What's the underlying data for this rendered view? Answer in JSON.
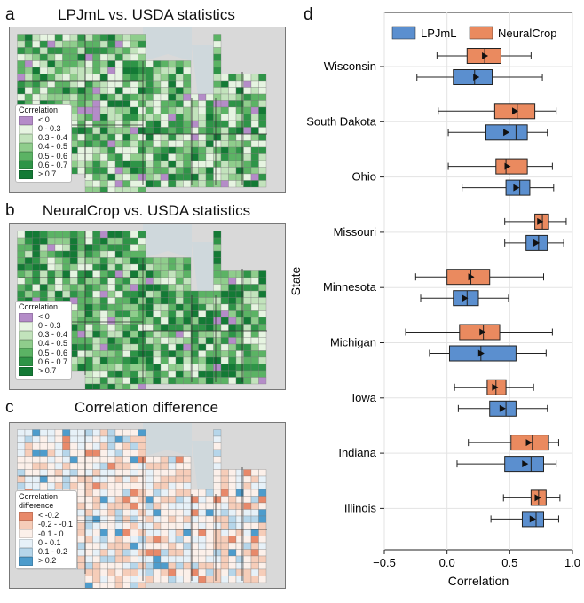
{
  "panels": {
    "a": {
      "letter": "a",
      "title": "LPJmL vs. USDA statistics"
    },
    "b": {
      "letter": "b",
      "title": "NeuralCrop vs. USDA statistics"
    },
    "c": {
      "letter": "c",
      "title": "Correlation difference"
    },
    "d": {
      "letter": "d"
    }
  },
  "legend_corr": {
    "title": "Correlation",
    "items": [
      {
        "label": "< 0",
        "color": "#b48cc8"
      },
      {
        "label": "0 - 0.3",
        "color": "#e6f4e1"
      },
      {
        "label": "0.3 - 0.4",
        "color": "#c2e3bc"
      },
      {
        "label": "0.4 - 0.5",
        "color": "#8fcd8c"
      },
      {
        "label": "0.5 - 0.6",
        "color": "#5bb364"
      },
      {
        "label": "0.6 - 0.7",
        "color": "#2e9447"
      },
      {
        "label": "> 0.7",
        "color": "#137a35"
      }
    ]
  },
  "legend_diff": {
    "title_line1": "Correlation",
    "title_line2": "difference",
    "items": [
      {
        "label": "< -0.2",
        "color": "#e8896a"
      },
      {
        "label": "-0.2 - -0.1",
        "color": "#f6cdb9"
      },
      {
        "label": "-0.1 - 0",
        "color": "#fcf0ea"
      },
      {
        "label": "0 - 0.1",
        "color": "#e7f1f8"
      },
      {
        "label": "0.1 - 0.2",
        "color": "#b6d6ea"
      },
      {
        "label": "> 0.2",
        "color": "#4d9ccc"
      }
    ]
  },
  "chart_data": {
    "type": "boxplot",
    "xlabel": "Correlation",
    "ylabel": "State",
    "xlim": [
      -0.5,
      1.0
    ],
    "xticks": [
      "−0.5",
      "0.0",
      "0.5",
      "1.0"
    ],
    "xtick_values": [
      -0.5,
      0.0,
      0.5,
      1.0
    ],
    "legend": {
      "position": "top",
      "entries": [
        {
          "name": "LPJmL",
          "color": "#5b8fcf"
        },
        {
          "name": "NeuralCrop",
          "color": "#ea8a5f"
        }
      ]
    },
    "categories": [
      "Wisconsin",
      "South Dakota",
      "Ohio",
      "Missouri",
      "Minnesota",
      "Michigan",
      "Iowa",
      "Indiana",
      "Illinois"
    ],
    "series": [
      {
        "name": "NeuralCrop",
        "color": "#ea8a5f",
        "boxes": [
          {
            "min": -0.08,
            "q1": 0.16,
            "median": 0.3,
            "q3": 0.43,
            "max": 0.67,
            "mean": 0.3
          },
          {
            "min": -0.07,
            "q1": 0.38,
            "median": 0.56,
            "q3": 0.7,
            "max": 0.87,
            "mean": 0.54
          },
          {
            "min": 0.01,
            "q1": 0.39,
            "median": 0.47,
            "q3": 0.64,
            "max": 0.84,
            "mean": 0.48
          },
          {
            "min": 0.46,
            "q1": 0.7,
            "median": 0.76,
            "q3": 0.81,
            "max": 0.95,
            "mean": 0.74
          },
          {
            "min": -0.25,
            "q1": 0.0,
            "median": 0.19,
            "q3": 0.34,
            "max": 0.77,
            "mean": 0.19
          },
          {
            "min": -0.33,
            "q1": 0.1,
            "median": 0.29,
            "q3": 0.42,
            "max": 0.84,
            "mean": 0.28
          },
          {
            "min": 0.06,
            "q1": 0.32,
            "median": 0.39,
            "q3": 0.47,
            "max": 0.69,
            "mean": 0.38
          },
          {
            "min": 0.17,
            "q1": 0.51,
            "median": 0.68,
            "q3": 0.81,
            "max": 0.89,
            "mean": 0.65
          },
          {
            "min": 0.45,
            "q1": 0.67,
            "median": 0.73,
            "q3": 0.79,
            "max": 0.9,
            "mean": 0.72
          }
        ]
      },
      {
        "name": "LPJmL",
        "color": "#5b8fcf",
        "boxes": [
          {
            "min": -0.24,
            "q1": 0.05,
            "median": 0.22,
            "q3": 0.36,
            "max": 0.76,
            "mean": 0.23
          },
          {
            "min": 0.01,
            "q1": 0.31,
            "median": 0.55,
            "q3": 0.64,
            "max": 0.8,
            "mean": 0.47
          },
          {
            "min": 0.12,
            "q1": 0.47,
            "median": 0.58,
            "q3": 0.66,
            "max": 0.85,
            "mean": 0.55
          },
          {
            "min": 0.46,
            "q1": 0.63,
            "median": 0.73,
            "q3": 0.8,
            "max": 0.93,
            "mean": 0.71
          },
          {
            "min": -0.21,
            "q1": 0.05,
            "median": 0.16,
            "q3": 0.25,
            "max": 0.49,
            "mean": 0.14
          },
          {
            "min": -0.14,
            "q1": 0.02,
            "median": 0.27,
            "q3": 0.55,
            "max": 0.79,
            "mean": 0.27
          },
          {
            "min": 0.09,
            "q1": 0.34,
            "median": 0.47,
            "q3": 0.55,
            "max": 0.8,
            "mean": 0.44
          },
          {
            "min": 0.08,
            "q1": 0.46,
            "median": 0.67,
            "q3": 0.77,
            "max": 0.87,
            "mean": 0.62
          },
          {
            "min": 0.35,
            "q1": 0.6,
            "median": 0.71,
            "q3": 0.77,
            "max": 0.89,
            "mean": 0.68
          }
        ]
      }
    ]
  }
}
